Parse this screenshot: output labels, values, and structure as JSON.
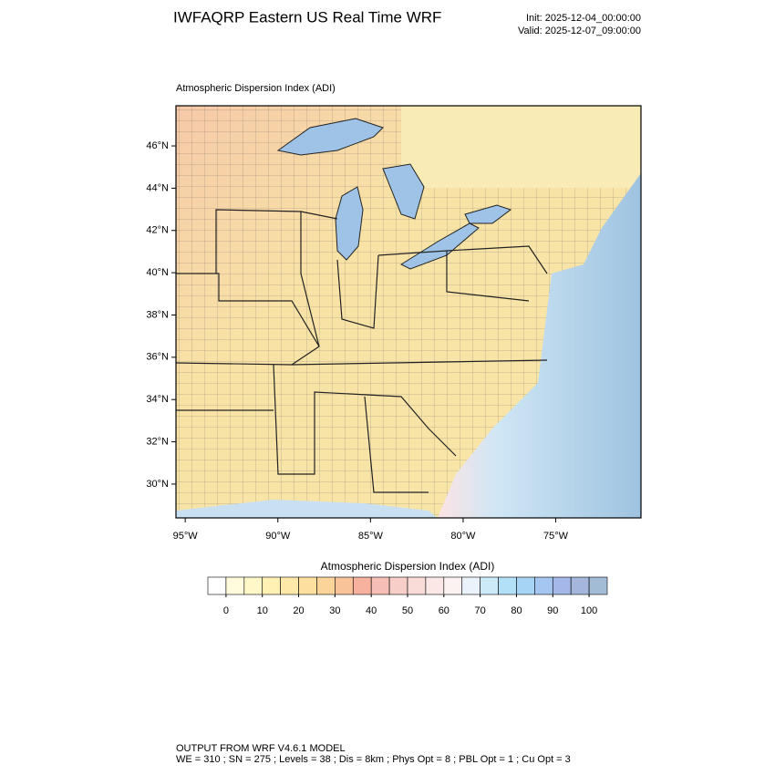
{
  "header": {
    "title": "IWFAQRP Eastern US Real Time WRF",
    "init": "Init: 2025-12-04_00:00:00",
    "valid": "Valid: 2025-12-07_09:00:00"
  },
  "map": {
    "subtitle": "Atmospheric Dispersion Index   (ADI)",
    "xlim": [
      -95.5,
      -70.4
    ],
    "ylim": [
      28.4,
      47.9
    ],
    "yticks": [
      {
        "value": 46,
        "label": "46°N"
      },
      {
        "value": 44,
        "label": "44°N"
      },
      {
        "value": 42,
        "label": "42°N"
      },
      {
        "value": 40,
        "label": "40°N"
      },
      {
        "value": 38,
        "label": "38°N"
      },
      {
        "value": 36,
        "label": "36°N"
      },
      {
        "value": 34,
        "label": "34°N"
      },
      {
        "value": 32,
        "label": "32°N"
      },
      {
        "value": 30,
        "label": "30°N"
      }
    ],
    "xticks": [
      {
        "value": -95,
        "label": "95°W"
      },
      {
        "value": -90,
        "label": "90°W"
      },
      {
        "value": -85,
        "label": "85°W"
      },
      {
        "value": -80,
        "label": "80°W"
      },
      {
        "value": -75,
        "label": "75°W"
      }
    ]
  },
  "colorbar": {
    "title": "Atmospheric Dispersion Index  (ADI)",
    "clim": [
      -5,
      105
    ],
    "ticks": [
      0,
      10,
      20,
      30,
      40,
      50,
      60,
      70,
      80,
      90,
      100
    ],
    "colors": [
      "#ffffff",
      "#fffbdc",
      "#fff7c8",
      "#fff1b4",
      "#ffe9a8",
      "#fde0a0",
      "#fbd49a",
      "#f9c39a",
      "#f6b19f",
      "#f5bfb5",
      "#f7cfc8",
      "#f9dcd8",
      "#fbe8e6",
      "#fdf2f2",
      "#eaf3fb",
      "#cdeaf8",
      "#b2e0f7",
      "#a6d4f5",
      "#a4c6f0",
      "#a3b8e8",
      "#a5b6dc",
      "#a3bcd6"
    ]
  },
  "footer": [
    "OUTPUT FROM WRF V4.6.1 MODEL",
    "WE = 310 ; SN = 275 ; Levels = 38 ; Dis = 8km ; Phys Opt = 8 ; PBL Opt = 1 ; Cu Opt = 3"
  ]
}
